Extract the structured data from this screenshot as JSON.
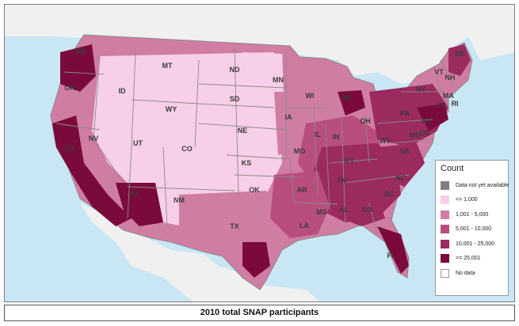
{
  "legend": {
    "title": "Count",
    "items": [
      {
        "label": "Data not yet available",
        "color": "#7f7f7f",
        "border": "#7f7f7f"
      },
      {
        "label": "<= 1,000",
        "color": "#f7cfe9",
        "border": "#f7cfe9"
      },
      {
        "label": "1,001 - 5,000",
        "color": "#d07da3",
        "border": "#d07da3"
      },
      {
        "label": "5,001 - 10,000",
        "color": "#b84e7e",
        "border": "#b84e7e"
      },
      {
        "label": "10,001 - 25,000",
        "color": "#9b2a5f",
        "border": "#9b2a5f"
      },
      {
        "label": ">= 25,001",
        "color": "#7a0a3c",
        "border": "#7a0a3c"
      },
      {
        "label": "No data",
        "color": "#ffffff",
        "border": "#9a9a9a"
      }
    ]
  },
  "caption": "2010 total SNAP participants",
  "colors": {
    "water": "#c9e6f4",
    "foreign_land": "#f0f0f0",
    "state_border": "#8a8a8a"
  },
  "state_labels": [
    "WA",
    "OR",
    "CA",
    "NV",
    "ID",
    "MT",
    "WY",
    "UT",
    "AZ",
    "CO",
    "NM",
    "ND",
    "SD",
    "NE",
    "KS",
    "OK",
    "TX",
    "MN",
    "IA",
    "MO",
    "AR",
    "LA",
    "WI",
    "IL",
    "MS",
    "MI",
    "IN",
    "KY",
    "TN",
    "AL",
    "GA",
    "FL",
    "OH",
    "WV",
    "SC",
    "NC",
    "VA",
    "PA",
    "NY",
    "ME",
    "VT",
    "NH",
    "MA",
    "CT",
    "RI",
    "NJ",
    "DE",
    "MD"
  ]
}
